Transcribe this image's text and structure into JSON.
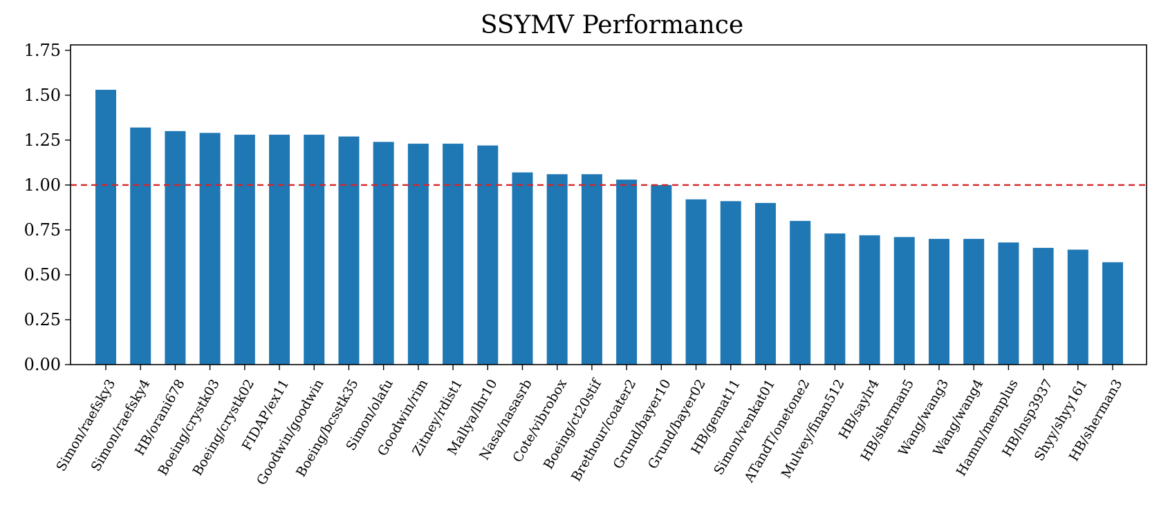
{
  "chart_data": {
    "type": "bar",
    "title": "SSYMV Performance",
    "xlabel": "",
    "ylabel": "",
    "ylim": [
      0,
      1.78
    ],
    "yticks": [
      "0.00",
      "0.25",
      "0.50",
      "0.75",
      "1.00",
      "1.25",
      "1.50",
      "1.75"
    ],
    "reference_line": {
      "y": 1.0,
      "style": "dashed",
      "color": "#d62728"
    },
    "grid": false,
    "bar_color": "#1f77b4",
    "categories": [
      "Simon/raefsky3",
      "Simon/raefsky4",
      "HB/orani678",
      "Boeing/crystk03",
      "Boeing/crystk02",
      "FIDAP/ex11",
      "Goodwin/goodwin",
      "Boeing/bcsstk35",
      "Simon/olafu",
      "Goodwin/rim",
      "Zitney/rdist1",
      "Mallya/lhr10",
      "Nasa/nasasrb",
      "Cote/vibrobox",
      "Boeing/ct20stif",
      "Brethour/coater2",
      "Grund/bayer10",
      "Grund/bayer02",
      "HB/gemat11",
      "Simon/venkat01",
      "ATandT/onetone2",
      "Mulvey/finan512",
      "HB/saylr4",
      "HB/sherman5",
      "Wang/wang3",
      "Wang/wang4",
      "Hamm/memplus",
      "HB/lnsp3937",
      "Shyy/shyy161",
      "HB/sherman3"
    ],
    "values": [
      1.53,
      1.32,
      1.3,
      1.29,
      1.28,
      1.28,
      1.28,
      1.27,
      1.24,
      1.23,
      1.23,
      1.22,
      1.07,
      1.06,
      1.06,
      1.03,
      1.0,
      0.92,
      0.91,
      0.9,
      0.8,
      0.73,
      0.72,
      0.71,
      0.7,
      0.7,
      0.68,
      0.65,
      0.64,
      0.57
    ]
  }
}
